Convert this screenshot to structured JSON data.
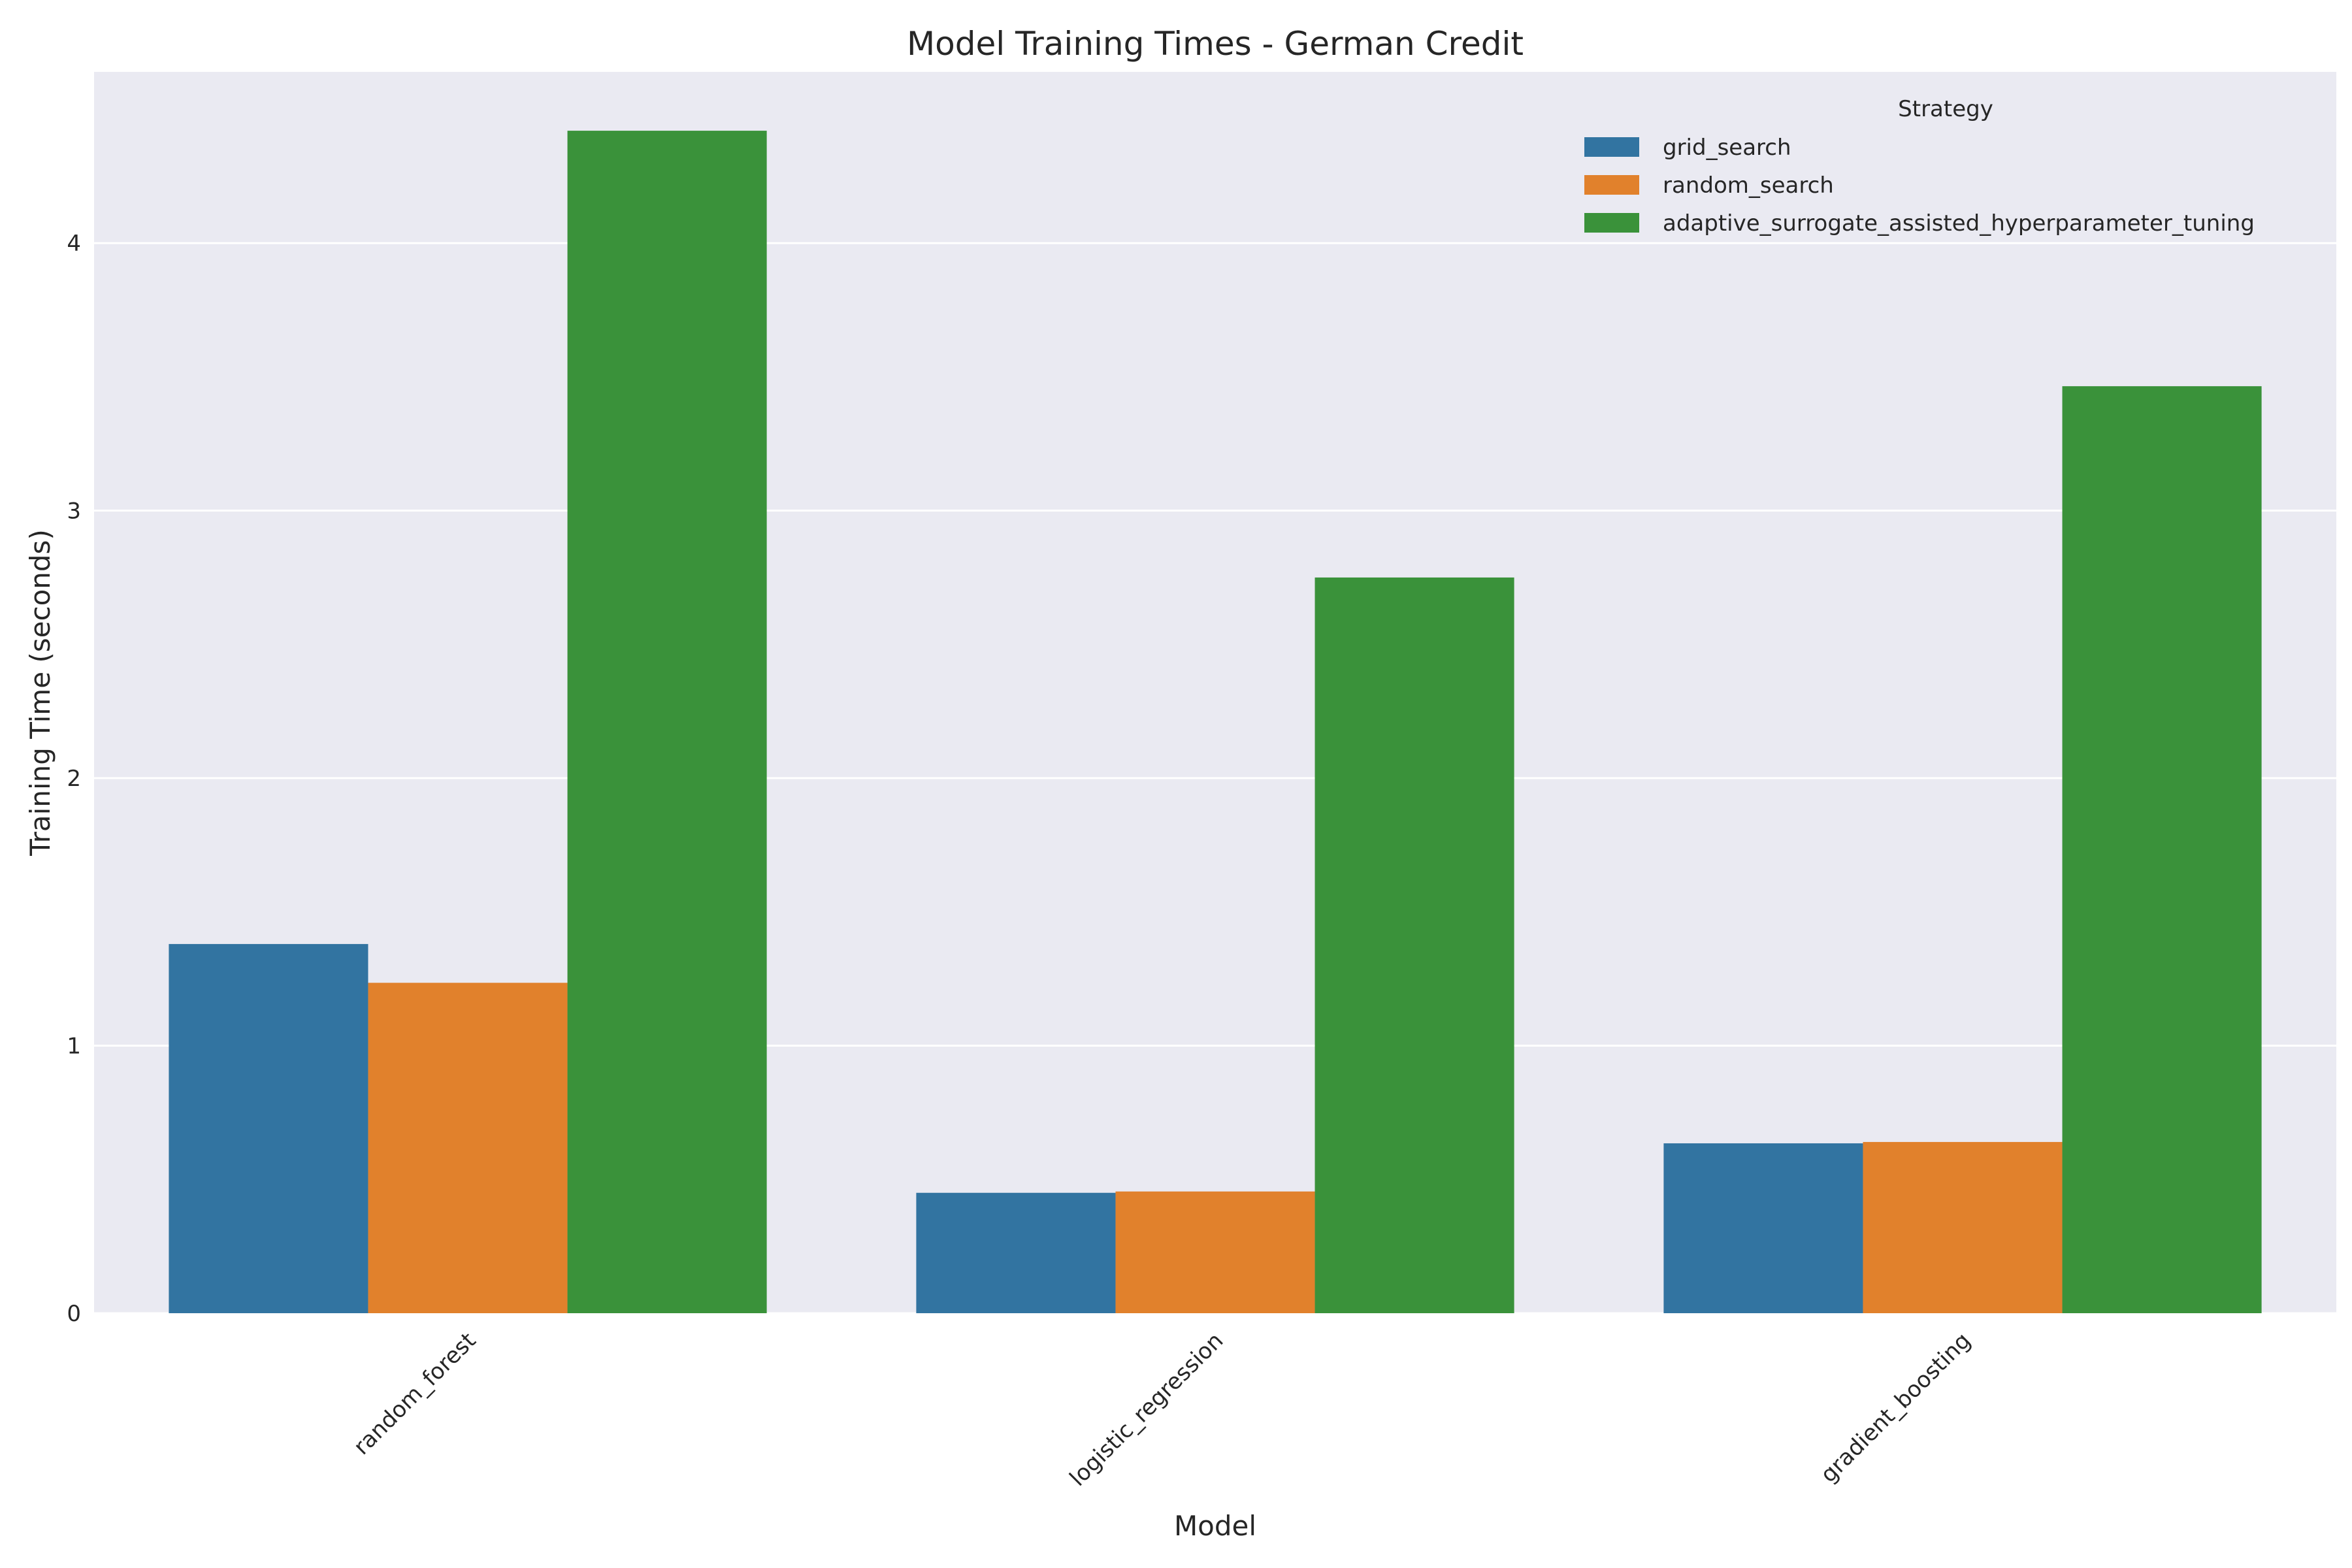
{
  "chart_data": {
    "type": "bar",
    "title": "Model Training Times - German Credit",
    "xlabel": "Model",
    "ylabel": "Training Time (seconds)",
    "categories": [
      "random_forest",
      "logistic_regression",
      "gradient_boosting"
    ],
    "series": [
      {
        "name": "grid_search",
        "values": [
          1.38,
          0.45,
          0.635
        ],
        "color": "#3274a1"
      },
      {
        "name": "random_search",
        "values": [
          1.235,
          0.455,
          0.64
        ],
        "color": "#e1812c"
      },
      {
        "name": "adaptive_surrogate_assisted_hyperparameter_tuning",
        "values": [
          4.42,
          2.75,
          3.465
        ],
        "color": "#3a923a"
      }
    ],
    "ylim": [
      0,
      4.64
    ],
    "yticks": [
      0,
      1,
      2,
      3,
      4
    ],
    "grid": true,
    "plot_background": "#eaeaf2",
    "grid_color": "#ffffff",
    "legend": {
      "title": "Strategy",
      "placement": "top-right"
    }
  }
}
